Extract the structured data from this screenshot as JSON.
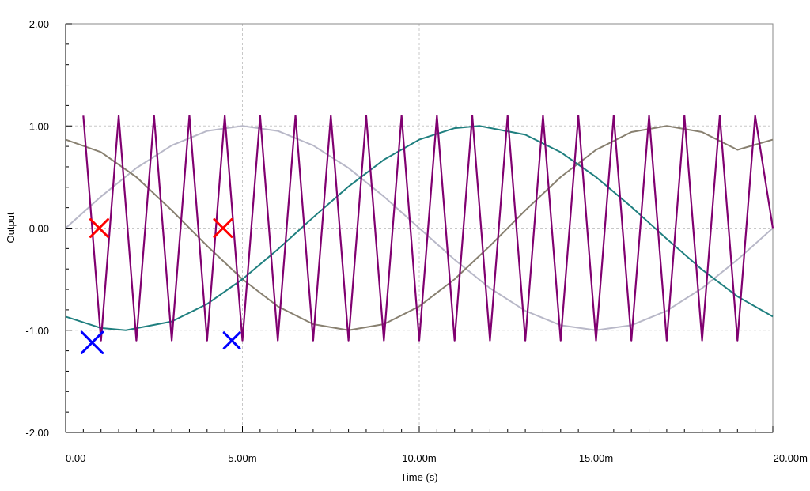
{
  "chart_data": {
    "type": "line",
    "title": "",
    "xlabel": "Time (s)",
    "ylabel": "Output",
    "xlim": [
      0,
      0.02
    ],
    "ylim": [
      -2,
      2
    ],
    "grid": true,
    "x_ticks": [
      {
        "value": 0,
        "label": "0.00"
      },
      {
        "value": 0.005,
        "label": "5.00m"
      },
      {
        "value": 0.01,
        "label": "10.00m"
      },
      {
        "value": 0.015,
        "label": "15.00m"
      },
      {
        "value": 0.02,
        "label": "20.00m"
      }
    ],
    "y_ticks": [
      {
        "value": -2,
        "label": "-2.00"
      },
      {
        "value": -1,
        "label": "-1.00"
      },
      {
        "value": 0,
        "label": "0.00"
      },
      {
        "value": 1,
        "label": "1.00"
      },
      {
        "value": 2,
        "label": "2.00"
      }
    ],
    "series": [
      {
        "color": "#b8b8c8",
        "x": [
          0,
          0.001,
          0.002,
          0.003,
          0.004,
          0.005,
          0.006,
          0.007,
          0.008,
          0.009,
          0.01,
          0.011,
          0.012,
          0.013,
          0.014,
          0.015,
          0.016,
          0.017,
          0.018,
          0.019,
          0.02
        ],
        "y": [
          0,
          0.309,
          0.588,
          0.809,
          0.951,
          1,
          0.951,
          0.809,
          0.588,
          0.309,
          0,
          -0.309,
          -0.588,
          -0.809,
          -0.951,
          -1,
          -0.951,
          -0.809,
          -0.588,
          -0.309,
          0
        ]
      },
      {
        "color": "#888070",
        "x": [
          0,
          0.001,
          0.002,
          0.003,
          0.004,
          0.005,
          0.006,
          0.007,
          0.008,
          0.009,
          0.01,
          0.011,
          0.012,
          0.013,
          0.014,
          0.015,
          0.016,
          0.017,
          0.018,
          0.019,
          0.02
        ],
        "y": [
          0.866,
          0.743,
          0.5,
          0.174,
          -0.174,
          -0.5,
          -0.766,
          -0.94,
          -1,
          -0.94,
          -0.766,
          -0.5,
          -0.174,
          0.174,
          0.5,
          0.766,
          0.94,
          1,
          0.94,
          0.766,
          0.866
        ]
      },
      {
        "color": "#1f7f7f",
        "x": [
          0,
          0.001,
          0.0017,
          0.003,
          0.004,
          0.005,
          0.006,
          0.007,
          0.008,
          0.009,
          0.01,
          0.011,
          0.0117,
          0.013,
          0.014,
          0.015,
          0.016,
          0.017,
          0.018,
          0.019,
          0.02
        ],
        "y": [
          -0.866,
          -0.978,
          -1,
          -0.914,
          -0.743,
          -0.5,
          -0.208,
          0.105,
          0.407,
          0.669,
          0.866,
          0.978,
          1,
          0.914,
          0.743,
          0.5,
          0.208,
          -0.105,
          -0.407,
          -0.669,
          -0.866
        ]
      },
      {
        "color": "#800070",
        "x": [
          0.0005,
          0.001,
          0.0015,
          0.002,
          0.0025,
          0.003,
          0.0035,
          0.004,
          0.0045,
          0.005,
          0.0055,
          0.006,
          0.0065,
          0.007,
          0.0075,
          0.008,
          0.0085,
          0.009,
          0.0095,
          0.01,
          0.0105,
          0.011,
          0.0115,
          0.012,
          0.0125,
          0.013,
          0.0135,
          0.014,
          0.0145,
          0.015,
          0.0155,
          0.016,
          0.0165,
          0.017,
          0.0175,
          0.018,
          0.0185,
          0.019,
          0.0195,
          0.02
        ],
        "y": [
          1.1,
          -1.1,
          1.1,
          -1.1,
          1.1,
          -1.1,
          1.1,
          -1.1,
          1.1,
          -1.1,
          1.1,
          -1.1,
          1.1,
          -1.1,
          1.1,
          -1.1,
          1.1,
          -1.1,
          1.1,
          -1.1,
          1.1,
          -1.1,
          1.1,
          -1.1,
          1.1,
          -1.1,
          1.1,
          -1.1,
          1.1,
          -1.1,
          1.1,
          -1.1,
          1.1,
          -1.1,
          1.1,
          -1.1,
          1.1,
          -1.1,
          1.1,
          0
        ]
      }
    ],
    "markers": [
      {
        "x": 0.00095,
        "y": 0,
        "color": "#ff0000",
        "size": 1
      },
      {
        "x": 0.00445,
        "y": 0,
        "color": "#ff0000",
        "size": 1
      },
      {
        "x": 0.00075,
        "y": -1.12,
        "color": "#0000ff",
        "size": 1.2
      },
      {
        "x": 0.0047,
        "y": -1.1,
        "color": "#0000ff",
        "size": 0.9
      }
    ]
  }
}
